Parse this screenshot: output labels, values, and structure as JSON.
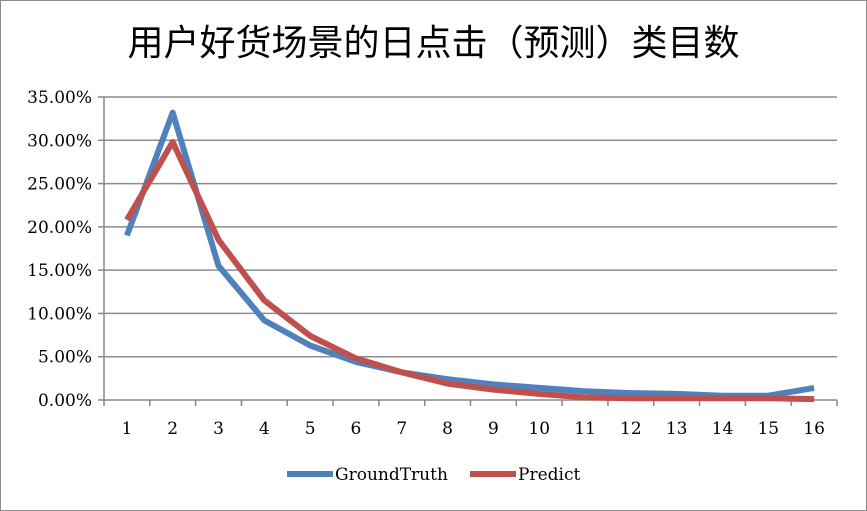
{
  "chart_data": {
    "type": "line",
    "title": "用户好货场景的日点击（预测）类目数",
    "x": [
      "1",
      "2",
      "3",
      "4",
      "5",
      "6",
      "7",
      "8",
      "9",
      "10",
      "11",
      "12",
      "13",
      "14",
      "15",
      "16"
    ],
    "ylim": [
      0,
      35
    ],
    "yticks": [
      "0.00%",
      "5.00%",
      "10.00%",
      "15.00%",
      "20.00%",
      "25.00%",
      "30.00%",
      "35.00%"
    ],
    "ytick_values": [
      0,
      5,
      10,
      15,
      20,
      25,
      30,
      35
    ],
    "grid": true,
    "legend_position": "bottom",
    "series": [
      {
        "name": "GroundTruth",
        "color": "#4f81bd",
        "values": [
          19.0,
          33.2,
          15.5,
          9.2,
          6.3,
          4.4,
          3.2,
          2.4,
          1.8,
          1.4,
          1.0,
          0.8,
          0.7,
          0.5,
          0.5,
          1.4
        ]
      },
      {
        "name": "Predict",
        "color": "#c0504d",
        "values": [
          20.8,
          29.8,
          18.5,
          11.5,
          7.4,
          4.8,
          3.2,
          1.9,
          1.2,
          0.7,
          0.3,
          0.2,
          0.2,
          0.2,
          0.2,
          0.1
        ]
      }
    ]
  }
}
